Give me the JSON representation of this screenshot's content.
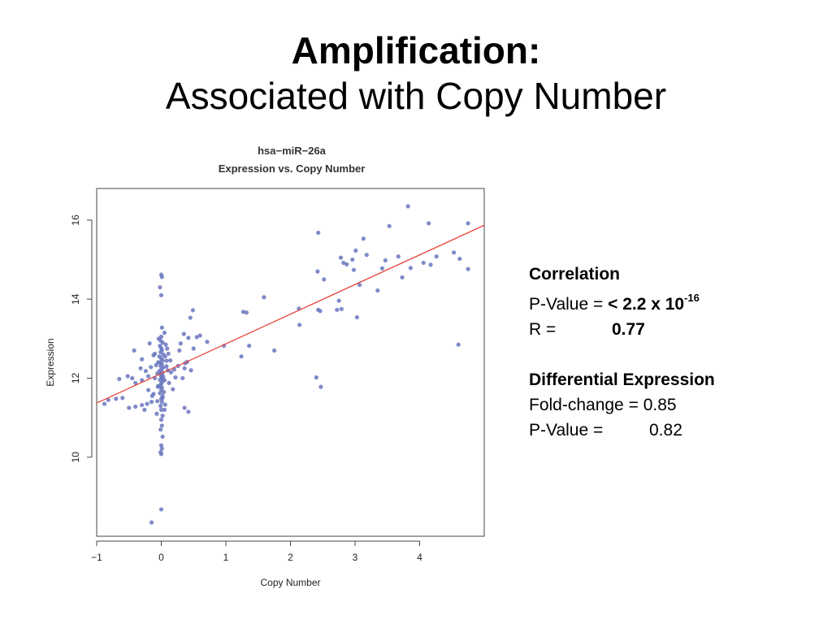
{
  "slide": {
    "title_bold": "Amplification:",
    "title_regular": "Associated with Copy Number"
  },
  "stats": {
    "correlation_heading": "Correlation",
    "pvalue_label": "P-Value = ",
    "pvalue_value": "< 2.2 x 10",
    "pvalue_exponent": "-16",
    "r_label": "R =",
    "r_value": "0.77",
    "diff_heading": "Differential Expression",
    "fold_label": "Fold-change = ",
    "fold_value": "0.85",
    "pvalue2_label": "P-Value =",
    "pvalue2_value": "0.82"
  },
  "chart_data": {
    "type": "scatter",
    "title": "hsa−miR−26a",
    "subtitle": "Expression vs. Copy Number",
    "xlabel": "Copy Number",
    "ylabel": "Expression",
    "xlim": [
      -1.0,
      5.0
    ],
    "ylim": [
      8.0,
      16.8
    ],
    "xticks": [
      -1,
      0,
      1,
      2,
      3,
      4
    ],
    "xtick_labels": [
      "−1",
      "0",
      "1",
      "2",
      "3",
      "4"
    ],
    "yticks": [
      10,
      12,
      14,
      16
    ],
    "ytick_labels": [
      "10",
      "12",
      "14",
      "16"
    ],
    "point_color": "#6a76c0",
    "line_color": "#e8463a",
    "fit_line": {
      "x": [
        -1.0,
        5.0
      ],
      "y": [
        11.37,
        15.87
      ]
    },
    "points": [
      [
        3.82,
        16.35
      ],
      [
        4.14,
        15.92
      ],
      [
        4.75,
        15.92
      ],
      [
        3.53,
        15.85
      ],
      [
        2.43,
        15.68
      ],
      [
        3.13,
        15.53
      ],
      [
        3.01,
        15.23
      ],
      [
        3.18,
        15.12
      ],
      [
        3.67,
        15.08
      ],
      [
        4.53,
        15.18
      ],
      [
        2.78,
        15.05
      ],
      [
        2.96,
        15.0
      ],
      [
        3.47,
        14.98
      ],
      [
        4.26,
        15.08
      ],
      [
        4.62,
        15.02
      ],
      [
        2.82,
        14.92
      ],
      [
        2.87,
        14.88
      ],
      [
        3.42,
        14.78
      ],
      [
        4.06,
        14.92
      ],
      [
        4.17,
        14.87
      ],
      [
        4.75,
        14.76
      ],
      [
        2.98,
        14.74
      ],
      [
        2.42,
        14.7
      ],
      [
        3.86,
        14.79
      ],
      [
        3.73,
        14.55
      ],
      [
        2.52,
        14.5
      ],
      [
        3.07,
        14.36
      ],
      [
        3.35,
        14.22
      ],
      [
        2.75,
        13.96
      ],
      [
        1.59,
        14.05
      ],
      [
        2.72,
        13.73
      ],
      [
        2.79,
        13.75
      ],
      [
        2.13,
        13.76
      ],
      [
        2.43,
        13.73
      ],
      [
        2.46,
        13.7
      ],
      [
        1.27,
        13.68
      ],
      [
        1.32,
        13.66
      ],
      [
        3.03,
        13.54
      ],
      [
        2.14,
        13.35
      ],
      [
        0.49,
        13.72
      ],
      [
        0.45,
        13.53
      ],
      [
        1.36,
        12.82
      ],
      [
        1.24,
        12.55
      ],
      [
        1.75,
        12.7
      ],
      [
        0.97,
        12.82
      ],
      [
        0.71,
        12.92
      ],
      [
        0.6,
        13.08
      ],
      [
        0.42,
        13.02
      ],
      [
        0.5,
        12.75
      ],
      [
        0.3,
        12.88
      ],
      [
        0.35,
        13.12
      ],
      [
        0.55,
        13.04
      ],
      [
        4.6,
        12.85
      ],
      [
        2.4,
        12.02
      ],
      [
        2.47,
        11.78
      ],
      [
        0.37,
        12.38
      ],
      [
        0.36,
        12.25
      ],
      [
        0.4,
        12.41
      ],
      [
        0.33,
        12.0
      ],
      [
        0.46,
        12.2
      ],
      [
        0.42,
        11.15
      ],
      [
        0.36,
        11.25
      ],
      [
        0.2,
        12.22
      ],
      [
        0.26,
        12.31
      ],
      [
        0.22,
        12.02
      ],
      [
        0.15,
        12.15
      ],
      [
        0.08,
        12.44
      ],
      [
        0.11,
        12.62
      ],
      [
        0.28,
        12.7
      ],
      [
        0.03,
        12.04
      ],
      [
        -0.05,
        12.4
      ],
      [
        -0.1,
        12.62
      ],
      [
        -0.16,
        12.28
      ],
      [
        -0.2,
        12.05
      ],
      [
        -0.24,
        12.18
      ],
      [
        -0.32,
        12.25
      ],
      [
        -0.3,
        11.95
      ],
      [
        -0.4,
        11.88
      ],
      [
        -0.45,
        12.0
      ],
      [
        -0.52,
        12.05
      ],
      [
        -0.6,
        11.5
      ],
      [
        -0.7,
        11.48
      ],
      [
        -0.82,
        11.45
      ],
      [
        -0.88,
        11.35
      ],
      [
        -0.5,
        11.25
      ],
      [
        -0.4,
        11.28
      ],
      [
        -0.3,
        11.32
      ],
      [
        -0.22,
        11.35
      ],
      [
        -0.15,
        11.4
      ],
      [
        -0.26,
        11.2
      ],
      [
        -0.42,
        12.7
      ],
      [
        -0.3,
        12.48
      ],
      [
        -0.18,
        12.88
      ],
      [
        -0.65,
        11.98
      ],
      [
        -0.12,
        11.6
      ],
      [
        -0.2,
        11.7
      ],
      [
        -0.05,
        11.8
      ],
      [
        0.02,
        11.5
      ],
      [
        0.05,
        11.2
      ],
      [
        -0.07,
        11.1
      ],
      [
        0.0,
        14.62
      ],
      [
        0.01,
        14.56
      ],
      [
        -0.02,
        14.3
      ],
      [
        0.0,
        14.1
      ],
      [
        0.01,
        13.28
      ],
      [
        0.0,
        13.05
      ],
      [
        -0.01,
        12.95
      ],
      [
        0.02,
        12.9
      ],
      [
        -0.02,
        12.82
      ],
      [
        0.0,
        12.76
      ],
      [
        0.01,
        12.71
      ],
      [
        -0.01,
        12.66
      ],
      [
        0.03,
        12.6
      ],
      [
        -0.03,
        12.55
      ],
      [
        0.0,
        12.5
      ],
      [
        0.02,
        12.45
      ],
      [
        -0.02,
        12.4
      ],
      [
        0.01,
        12.36
      ],
      [
        -0.01,
        12.31
      ],
      [
        0.03,
        12.27
      ],
      [
        0.0,
        12.22
      ],
      [
        -0.03,
        12.18
      ],
      [
        0.02,
        12.14
      ],
      [
        -0.01,
        12.1
      ],
      [
        0.0,
        12.05
      ],
      [
        0.01,
        12.0
      ],
      [
        -0.02,
        11.96
      ],
      [
        0.02,
        11.92
      ],
      [
        0.0,
        11.87
      ],
      [
        -0.01,
        11.82
      ],
      [
        0.01,
        11.76
      ],
      [
        0.0,
        11.7
      ],
      [
        -0.02,
        11.62
      ],
      [
        0.02,
        11.55
      ],
      [
        0.0,
        11.48
      ],
      [
        0.01,
        11.4
      ],
      [
        -0.01,
        11.3
      ],
      [
        0.0,
        11.2
      ],
      [
        0.02,
        11.05
      ],
      [
        0.0,
        10.95
      ],
      [
        0.01,
        10.8
      ],
      [
        -0.01,
        10.7
      ],
      [
        0.02,
        10.52
      ],
      [
        0.0,
        10.3
      ],
      [
        0.01,
        10.22
      ],
      [
        -0.01,
        10.13
      ],
      [
        0.0,
        10.08
      ],
      [
        0.0,
        8.68
      ],
      [
        -0.15,
        8.35
      ],
      [
        0.06,
        12.55
      ],
      [
        0.08,
        12.3
      ],
      [
        -0.06,
        12.12
      ],
      [
        0.05,
        11.95
      ],
      [
        -0.05,
        11.78
      ],
      [
        0.07,
        12.85
      ],
      [
        0.1,
        12.2
      ],
      [
        -0.08,
        12.33
      ],
      [
        0.12,
        11.88
      ],
      [
        -0.1,
        12.0
      ],
      [
        0.05,
        13.15
      ],
      [
        -0.04,
        13.0
      ],
      [
        0.09,
        12.75
      ],
      [
        0.14,
        12.45
      ],
      [
        -0.12,
        12.58
      ],
      [
        0.18,
        11.72
      ],
      [
        -0.14,
        11.55
      ],
      [
        0.04,
        11.65
      ],
      [
        -0.06,
        11.42
      ],
      [
        0.06,
        11.33
      ]
    ]
  }
}
